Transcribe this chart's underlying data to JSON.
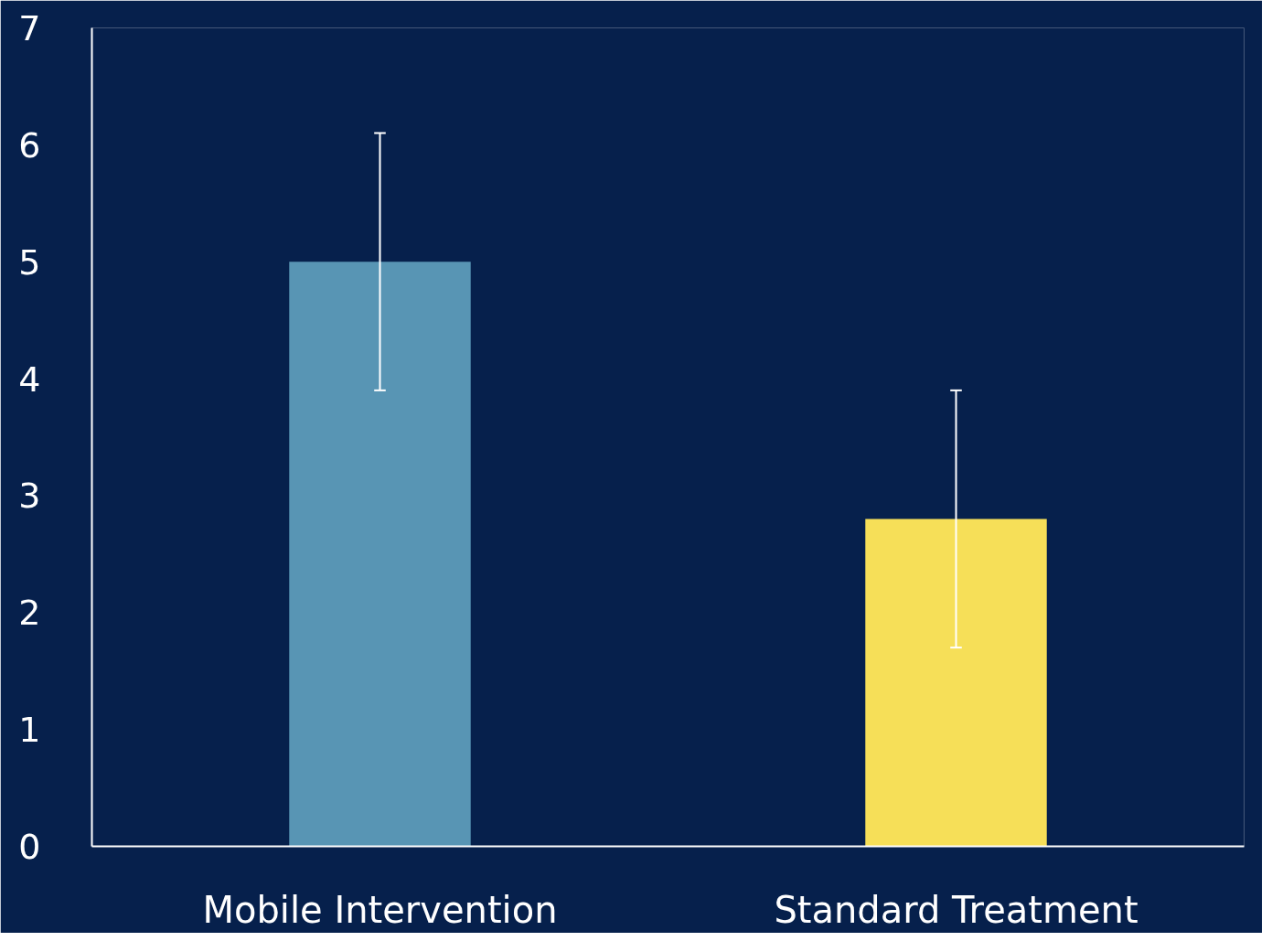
{
  "chart_data": {
    "type": "bar",
    "categories": [
      "Mobile Intervention",
      "Standard Treatment"
    ],
    "values": [
      5.0,
      2.8
    ],
    "colors": [
      "#5895b4",
      "#f6df58"
    ],
    "errors": [
      1.1,
      1.1
    ],
    "ylim": [
      0,
      7
    ],
    "yticks": [
      0,
      1,
      2,
      3,
      4,
      5,
      6,
      7
    ],
    "grid": false
  }
}
